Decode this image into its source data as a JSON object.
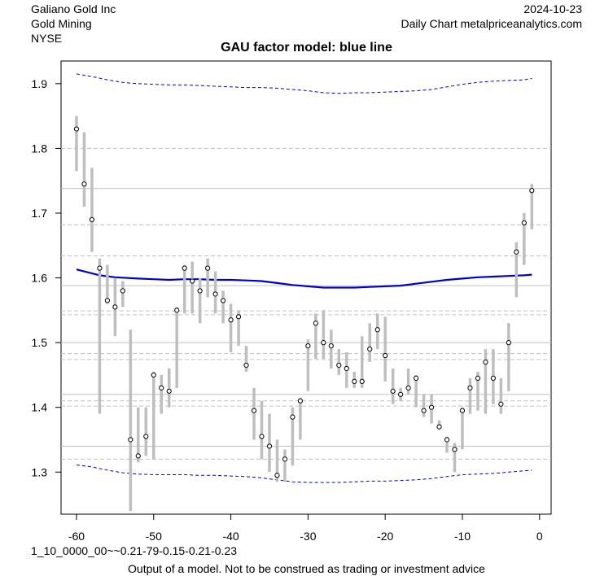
{
  "header": {
    "company": "Galiano Gold Inc",
    "sector": "Gold Mining",
    "exchange": "NYSE",
    "date": "2024-10-23",
    "source": "Daily Chart metalpriceanalytics.com"
  },
  "footer": {
    "model_code": "1_10_0000_00~~0.21-79-0.15-0.21-0.23",
    "disclaimer": "Output of a model. Not to be construed as trading or investment advice"
  },
  "chart_data": {
    "type": "scatter",
    "title": "GAU factor model: blue line",
    "xlabel": "",
    "ylabel": "",
    "xlim": [
      -62,
      1.5
    ],
    "ylim": [
      1.235,
      1.935
    ],
    "x_ticks": [
      -60,
      -50,
      -40,
      -30,
      -20,
      -10,
      0
    ],
    "y_ticks": [
      1.3,
      1.4,
      1.5,
      1.6,
      1.7,
      1.8,
      1.9
    ],
    "colors": {
      "model": "#0000cc",
      "band": "#0000cc",
      "range": "#bebebe",
      "grid": "#c0c0c0",
      "point": "#000000"
    },
    "hlines_solid": [
      1.738,
      1.588,
      1.5,
      1.42,
      1.34
    ],
    "hlines_dashed": [
      1.8,
      1.682,
      1.634,
      1.549,
      1.543,
      1.483,
      1.474,
      1.41,
      1.402,
      1.32
    ],
    "points": {
      "x": [
        -60,
        -59,
        -58,
        -57,
        -56,
        -55,
        -54,
        -53,
        -52,
        -51,
        -50,
        -49,
        -48,
        -47,
        -46,
        -45,
        -44,
        -43,
        -42,
        -41,
        -40,
        -39,
        -38,
        -37,
        -36,
        -35,
        -34,
        -33,
        -32,
        -31,
        -30,
        -29,
        -28,
        -27,
        -26,
        -25,
        -24,
        -23,
        -22,
        -21,
        -20,
        -19,
        -18,
        -17,
        -16,
        -15,
        -14,
        -13,
        -12,
        -11,
        -10,
        -9,
        -8,
        -7,
        -6,
        -5,
        -4,
        -3,
        -2,
        -1
      ],
      "close": [
        1.83,
        1.745,
        1.69,
        1.615,
        1.565,
        1.555,
        1.58,
        1.35,
        1.325,
        1.355,
        1.45,
        1.43,
        1.425,
        1.55,
        1.615,
        1.595,
        1.58,
        1.615,
        1.575,
        1.565,
        1.535,
        1.54,
        1.465,
        1.395,
        1.355,
        1.34,
        1.295,
        1.32,
        1.385,
        1.41,
        1.495,
        1.53,
        1.5,
        1.495,
        1.465,
        1.46,
        1.44,
        1.44,
        1.49,
        1.52,
        1.48,
        1.425,
        1.42,
        1.43,
        1.445,
        1.395,
        1.4,
        1.37,
        1.35,
        1.335,
        1.395,
        1.43,
        1.445,
        1.47,
        1.445,
        1.405,
        1.5,
        1.64,
        1.685,
        1.735
      ],
      "high": [
        1.85,
        1.825,
        1.77,
        1.63,
        1.62,
        1.6,
        1.595,
        1.52,
        1.4,
        1.4,
        1.455,
        1.45,
        1.46,
        1.555,
        1.62,
        1.625,
        1.6,
        1.63,
        1.61,
        1.58,
        1.56,
        1.55,
        1.495,
        1.43,
        1.41,
        1.39,
        1.35,
        1.335,
        1.4,
        1.415,
        1.505,
        1.545,
        1.55,
        1.52,
        1.49,
        1.485,
        1.455,
        1.51,
        1.53,
        1.545,
        1.54,
        1.46,
        1.43,
        1.46,
        1.45,
        1.42,
        1.42,
        1.38,
        1.355,
        1.345,
        1.4,
        1.445,
        1.455,
        1.49,
        1.49,
        1.445,
        1.53,
        1.655,
        1.7,
        1.745
      ],
      "low": [
        1.765,
        1.71,
        1.64,
        1.39,
        1.56,
        1.51,
        1.555,
        1.24,
        1.315,
        1.325,
        1.32,
        1.39,
        1.4,
        1.43,
        1.545,
        1.545,
        1.53,
        1.57,
        1.545,
        1.53,
        1.485,
        1.495,
        1.455,
        1.35,
        1.32,
        1.3,
        1.285,
        1.285,
        1.31,
        1.35,
        1.425,
        1.475,
        1.475,
        1.46,
        1.45,
        1.43,
        1.43,
        1.43,
        1.47,
        1.49,
        1.44,
        1.405,
        1.41,
        1.42,
        1.4,
        1.385,
        1.375,
        1.365,
        1.33,
        1.3,
        1.335,
        1.39,
        1.395,
        1.39,
        1.405,
        1.39,
        1.425,
        1.57,
        1.62,
        1.675
      ]
    },
    "model": {
      "x": [
        -60,
        -57,
        -55,
        -52,
        -50,
        -48,
        -46,
        -44,
        -42,
        -40,
        -38,
        -36,
        -34,
        -32,
        -30,
        -28,
        -26,
        -24,
        -22,
        -20,
        -18,
        -16,
        -14,
        -12,
        -10,
        -8,
        -6,
        -4,
        -2,
        -1
      ],
      "y": [
        1.613,
        1.604,
        1.601,
        1.599,
        1.598,
        1.597,
        1.598,
        1.598,
        1.597,
        1.597,
        1.596,
        1.595,
        1.592,
        1.589,
        1.587,
        1.585,
        1.585,
        1.585,
        1.586,
        1.587,
        1.588,
        1.591,
        1.594,
        1.597,
        1.599,
        1.601,
        1.602,
        1.603,
        1.604,
        1.605
      ]
    },
    "upper_band": {
      "x": [
        -60,
        -58,
        -56,
        -54,
        -52,
        -50,
        -48,
        -46,
        -44,
        -42,
        -40,
        -38,
        -36,
        -34,
        -32,
        -30,
        -28,
        -26,
        -24,
        -22,
        -20,
        -18,
        -16,
        -14,
        -12,
        -10,
        -8,
        -6,
        -4,
        -2,
        -1
      ],
      "y": [
        1.915,
        1.911,
        1.906,
        1.902,
        1.9,
        1.899,
        1.898,
        1.898,
        1.897,
        1.896,
        1.895,
        1.894,
        1.894,
        1.893,
        1.891,
        1.889,
        1.886,
        1.885,
        1.886,
        1.886,
        1.887,
        1.888,
        1.889,
        1.891,
        1.895,
        1.899,
        1.902,
        1.904,
        1.905,
        1.906,
        1.908
      ]
    },
    "lower_band": {
      "x": [
        -60,
        -58,
        -56,
        -54,
        -52,
        -50,
        -48,
        -46,
        -44,
        -42,
        -40,
        -38,
        -36,
        -34,
        -32,
        -30,
        -28,
        -26,
        -24,
        -22,
        -20,
        -18,
        -16,
        -14,
        -12,
        -10,
        -8,
        -6,
        -4,
        -2,
        -1
      ],
      "y": [
        1.311,
        1.308,
        1.303,
        1.299,
        1.297,
        1.296,
        1.296,
        1.296,
        1.295,
        1.295,
        1.294,
        1.293,
        1.291,
        1.288,
        1.285,
        1.284,
        1.284,
        1.284,
        1.285,
        1.286,
        1.286,
        1.287,
        1.288,
        1.29,
        1.293,
        1.296,
        1.297,
        1.298,
        1.3,
        1.302,
        1.303
      ]
    }
  }
}
